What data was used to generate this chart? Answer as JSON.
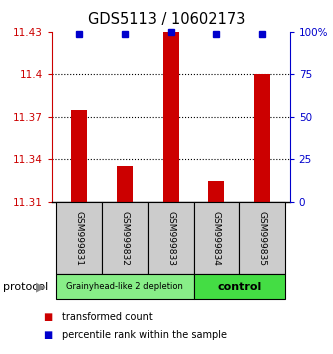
{
  "title": "GDS5113 / 10602173",
  "samples": [
    "GSM999831",
    "GSM999832",
    "GSM999833",
    "GSM999834",
    "GSM999835"
  ],
  "red_values": [
    11.375,
    11.335,
    11.43,
    11.325,
    11.4
  ],
  "blue_actual": [
    99,
    99,
    100,
    99,
    99
  ],
  "ylim_left": [
    11.31,
    11.43
  ],
  "ylim_right": [
    0,
    100
  ],
  "yticks_left": [
    11.31,
    11.34,
    11.37,
    11.4,
    11.43
  ],
  "yticks_right": [
    0,
    25,
    50,
    75,
    100
  ],
  "ytick_labels_right": [
    "0",
    "25",
    "50",
    "75",
    "100%"
  ],
  "group1_label": "Grainyhead-like 2 depletion",
  "group2_label": "control",
  "group1_color": "#88ee88",
  "group2_color": "#44dd44",
  "protocol_label": "protocol",
  "legend_red": "transformed count",
  "legend_blue": "percentile rank within the sample",
  "bar_bottom": 11.31,
  "red_color": "#cc0000",
  "blue_color": "#0000cc",
  "background_color": "#ffffff",
  "bar_width": 0.35,
  "sample_box_color": "#cccccc",
  "dotted_lines": [
    11.34,
    11.37,
    11.4
  ]
}
